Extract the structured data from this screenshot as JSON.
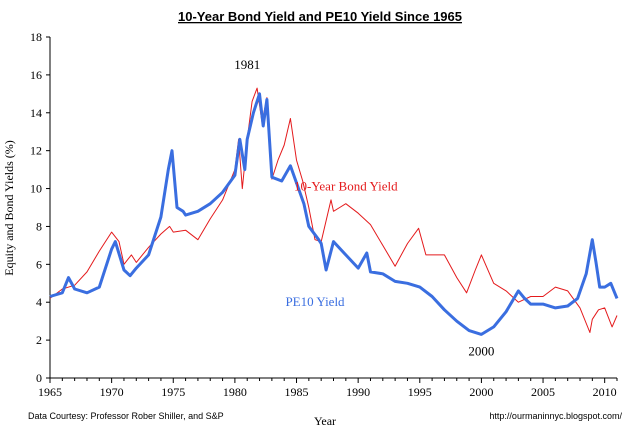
{
  "chart_data": {
    "type": "line",
    "title": "10-Year Bond Yield and PE10 Yield Since 1965",
    "xlabel": "Year",
    "ylabel": "Equity and Bond Yields (%)",
    "xlim": [
      1965,
      2011
    ],
    "ylim": [
      0,
      18
    ],
    "x_ticks": [
      1965,
      1970,
      1975,
      1980,
      1985,
      1990,
      1995,
      2000,
      2005,
      2010
    ],
    "y_ticks": [
      0,
      2,
      4,
      6,
      8,
      10,
      12,
      14,
      16,
      18
    ],
    "grid": false,
    "series": [
      {
        "name": "10-Year Bond Yield",
        "color": "#e41a1c",
        "points": [
          [
            1965.0,
            4.2
          ],
          [
            1966.0,
            4.7
          ],
          [
            1967.0,
            4.9
          ],
          [
            1968.0,
            5.6
          ],
          [
            1969.0,
            6.7
          ],
          [
            1970.0,
            7.7
          ],
          [
            1970.6,
            7.2
          ],
          [
            1971.0,
            6.0
          ],
          [
            1971.6,
            6.5
          ],
          [
            1972.0,
            6.1
          ],
          [
            1973.0,
            6.9
          ],
          [
            1974.0,
            7.6
          ],
          [
            1974.7,
            8.0
          ],
          [
            1975.0,
            7.7
          ],
          [
            1976.0,
            7.8
          ],
          [
            1977.0,
            7.3
          ],
          [
            1978.0,
            8.4
          ],
          [
            1979.0,
            9.4
          ],
          [
            1980.0,
            11.0
          ],
          [
            1980.3,
            12.6
          ],
          [
            1980.6,
            10.0
          ],
          [
            1981.0,
            12.6
          ],
          [
            1981.4,
            14.6
          ],
          [
            1981.8,
            15.3
          ],
          [
            1982.2,
            13.5
          ],
          [
            1982.6,
            14.8
          ],
          [
            1983.0,
            10.5
          ],
          [
            1983.5,
            11.5
          ],
          [
            1984.0,
            12.3
          ],
          [
            1984.5,
            13.7
          ],
          [
            1985.0,
            11.5
          ],
          [
            1985.5,
            10.4
          ],
          [
            1986.0,
            9.0
          ],
          [
            1986.5,
            7.3
          ],
          [
            1987.0,
            7.2
          ],
          [
            1987.8,
            9.4
          ],
          [
            1988.0,
            8.8
          ],
          [
            1988.5,
            9.0
          ],
          [
            1989.0,
            9.2
          ],
          [
            1990.0,
            8.7
          ],
          [
            1991.0,
            8.1
          ],
          [
            1992.0,
            7.0
          ],
          [
            1993.0,
            5.9
          ],
          [
            1994.0,
            7.1
          ],
          [
            1994.9,
            7.9
          ],
          [
            1995.5,
            6.5
          ],
          [
            1996.0,
            6.5
          ],
          [
            1997.0,
            6.5
          ],
          [
            1998.0,
            5.3
          ],
          [
            1998.8,
            4.5
          ],
          [
            1999.5,
            5.7
          ],
          [
            2000.0,
            6.5
          ],
          [
            2001.0,
            5.0
          ],
          [
            2002.0,
            4.6
          ],
          [
            2003.0,
            4.0
          ],
          [
            2004.0,
            4.3
          ],
          [
            2005.0,
            4.3
          ],
          [
            2006.0,
            4.8
          ],
          [
            2007.0,
            4.6
          ],
          [
            2008.0,
            3.7
          ],
          [
            2008.8,
            2.4
          ],
          [
            2009.0,
            3.1
          ],
          [
            2009.5,
            3.6
          ],
          [
            2010.0,
            3.7
          ],
          [
            2010.6,
            2.7
          ],
          [
            2011.0,
            3.3
          ]
        ]
      },
      {
        "name": "PE10 Yield",
        "color": "#3a6ee0",
        "points": [
          [
            1965.0,
            4.3
          ],
          [
            1966.0,
            4.5
          ],
          [
            1966.5,
            5.3
          ],
          [
            1967.0,
            4.7
          ],
          [
            1968.0,
            4.5
          ],
          [
            1969.0,
            4.8
          ],
          [
            1970.0,
            6.8
          ],
          [
            1970.3,
            7.2
          ],
          [
            1971.0,
            5.7
          ],
          [
            1971.5,
            5.4
          ],
          [
            1972.0,
            5.8
          ],
          [
            1973.0,
            6.5
          ],
          [
            1974.0,
            8.5
          ],
          [
            1974.6,
            11.0
          ],
          [
            1974.9,
            12.0
          ],
          [
            1975.3,
            9.0
          ],
          [
            1975.8,
            8.8
          ],
          [
            1976.0,
            8.6
          ],
          [
            1977.0,
            8.8
          ],
          [
            1978.0,
            9.2
          ],
          [
            1979.0,
            9.8
          ],
          [
            1980.0,
            10.7
          ],
          [
            1980.4,
            12.6
          ],
          [
            1980.8,
            11.0
          ],
          [
            1981.0,
            12.6
          ],
          [
            1981.5,
            14.0
          ],
          [
            1982.0,
            15.0
          ],
          [
            1982.3,
            13.3
          ],
          [
            1982.6,
            14.7
          ],
          [
            1983.0,
            10.6
          ],
          [
            1983.8,
            10.4
          ],
          [
            1984.5,
            11.2
          ],
          [
            1985.0,
            10.3
          ],
          [
            1985.6,
            9.2
          ],
          [
            1986.0,
            8.0
          ],
          [
            1986.8,
            7.3
          ],
          [
            1987.0,
            7.1
          ],
          [
            1987.4,
            5.7
          ],
          [
            1988.0,
            7.2
          ],
          [
            1989.0,
            6.5
          ],
          [
            1990.0,
            5.8
          ],
          [
            1990.7,
            6.6
          ],
          [
            1991.0,
            5.6
          ],
          [
            1992.0,
            5.5
          ],
          [
            1993.0,
            5.1
          ],
          [
            1994.0,
            5.0
          ],
          [
            1995.0,
            4.8
          ],
          [
            1996.0,
            4.3
          ],
          [
            1997.0,
            3.6
          ],
          [
            1998.0,
            3.0
          ],
          [
            1999.0,
            2.5
          ],
          [
            2000.0,
            2.3
          ],
          [
            2001.0,
            2.7
          ],
          [
            2002.0,
            3.5
          ],
          [
            2003.0,
            4.6
          ],
          [
            2003.5,
            4.2
          ],
          [
            2004.0,
            3.9
          ],
          [
            2005.0,
            3.9
          ],
          [
            2006.0,
            3.7
          ],
          [
            2007.0,
            3.8
          ],
          [
            2007.8,
            4.2
          ],
          [
            2008.5,
            5.5
          ],
          [
            2009.0,
            7.3
          ],
          [
            2009.3,
            6.1
          ],
          [
            2009.6,
            4.8
          ],
          [
            2010.0,
            4.8
          ],
          [
            2010.5,
            5.0
          ],
          [
            2011.0,
            4.2
          ]
        ]
      }
    ],
    "annotations": [
      {
        "text": "1981",
        "x": 1981,
        "y": 16.3
      },
      {
        "text": "2000",
        "x": 2000,
        "y": 1.2
      },
      {
        "text": "10-Year Bond Yield",
        "x": 1989,
        "y": 9.9
      },
      {
        "text": "PE10 Yield",
        "x": 1986.5,
        "y": 3.8
      }
    ],
    "credit_left": "Data Courtesy: Professor Rober Shiller, and S&P",
    "credit_right": "http://ourmaninnyc.blogspot.com/"
  }
}
